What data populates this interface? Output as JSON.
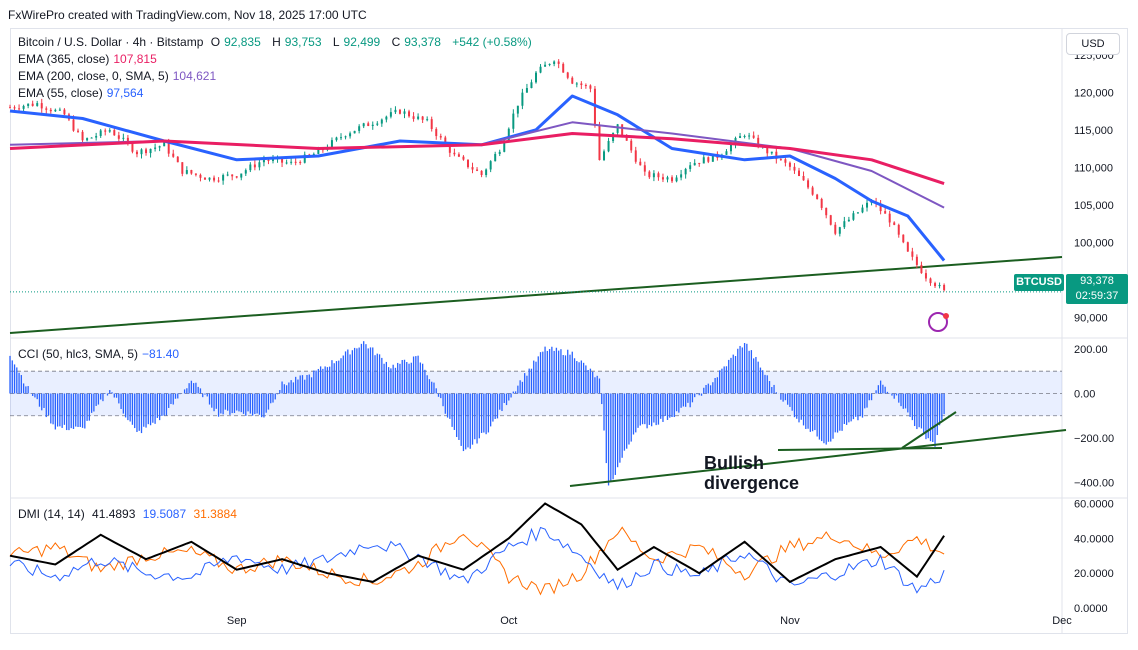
{
  "credit": "FxWirePro created with TradingView.com, Nov 18, 2025 17:00 UTC",
  "header": {
    "symbol": "Bitcoin / U.S. Dollar · 4h · Bitstamp",
    "o_label": "O",
    "o_value": "92,835",
    "h_label": "H",
    "h_value": "93,753",
    "l_label": "L",
    "l_value": "92,499",
    "c_label": "C",
    "c_value": "93,378",
    "change": "+542 (+0.58%)"
  },
  "indicators": [
    {
      "label": "EMA (365, close)",
      "value": "107,815",
      "color": "#e91e63"
    },
    {
      "label": "EMA (200, close, 0, SMA, 5)",
      "value": "104,621",
      "color": "#7e57c2"
    },
    {
      "label": "EMA (55, close)",
      "value": "97,564",
      "color": "#2962ff"
    }
  ],
  "cci_legend": {
    "label": "CCI (50, hlc3, SMA, 5)",
    "value": "−81.40"
  },
  "dmi_legend": {
    "label": "DMI (14, 14)",
    "adx": "41.4893",
    "plus_di": "19.5087",
    "minus_di": "31.3884"
  },
  "currency": "USD",
  "last_price": {
    "symbol": "BTCUSD",
    "price": "93,378",
    "countdown": "02:59:37"
  },
  "annotation": "Bullish divergence",
  "colors": {
    "up": "#089981",
    "down": "#f23645",
    "ema365": "#e91e63",
    "ema200": "#7e57c2",
    "ema55": "#2962ff",
    "cci": "#2962ff",
    "trend": "#1b5e20",
    "adx": "#000000",
    "plus_di": "#2962ff",
    "minus_di": "#ff6d00"
  },
  "chart_data": [
    {
      "type": "line",
      "name": "price",
      "yticks": [
        "90,000",
        "95,000",
        "100,000",
        "105,000",
        "110,000",
        "115,000",
        "120,000",
        "125,000"
      ],
      "ytick_values": [
        90000,
        95000,
        100000,
        105000,
        110000,
        115000,
        120000,
        125000
      ],
      "ylim": [
        87500,
        127500
      ],
      "xticks": [
        "Sep",
        "Oct",
        "Nov",
        "Dec"
      ],
      "xtick_dates": [
        "2025-09-01",
        "2025-10-01",
        "2025-11-01",
        "2025-12-01"
      ],
      "xlim": [
        "2025-08-07",
        "2025-12-01"
      ],
      "series": [
        {
          "key": "close",
          "x": [
            "2025-08-07",
            "2025-08-10",
            "2025-08-13",
            "2025-08-15",
            "2025-08-18",
            "2025-08-21",
            "2025-08-24",
            "2025-08-26",
            "2025-08-29",
            "2025-09-01",
            "2025-09-04",
            "2025-09-07",
            "2025-09-10",
            "2025-09-13",
            "2025-09-16",
            "2025-09-19",
            "2025-09-22",
            "2025-09-25",
            "2025-09-28",
            "2025-09-30",
            "2025-10-02",
            "2025-10-04",
            "2025-10-06",
            "2025-10-08",
            "2025-10-10",
            "2025-10-11",
            "2025-10-13",
            "2025-10-16",
            "2025-10-19",
            "2025-10-21",
            "2025-10-24",
            "2025-10-27",
            "2025-10-29",
            "2025-11-01",
            "2025-11-04",
            "2025-11-06",
            "2025-11-08",
            "2025-11-10",
            "2025-11-12",
            "2025-11-14",
            "2025-11-16",
            "2025-11-17",
            "2025-11-18"
          ],
          "y": [
            118000,
            118500,
            117000,
            113500,
            115000,
            112000,
            113000,
            109500,
            108500,
            109000,
            111000,
            110500,
            112000,
            114500,
            116000,
            117500,
            116000,
            111500,
            109000,
            112500,
            118500,
            122500,
            124500,
            121500,
            120500,
            111000,
            115500,
            109000,
            108500,
            110500,
            111500,
            114500,
            112500,
            110000,
            106000,
            101500,
            103500,
            105500,
            103000,
            98500,
            95500,
            94500,
            93378
          ]
        },
        {
          "key": "ema55",
          "x": [
            "2025-08-07",
            "2025-08-15",
            "2025-08-24",
            "2025-09-01",
            "2025-09-10",
            "2025-09-19",
            "2025-09-28",
            "2025-10-04",
            "2025-10-08",
            "2025-10-13",
            "2025-10-19",
            "2025-10-27",
            "2025-11-01",
            "2025-11-06",
            "2025-11-10",
            "2025-11-14",
            "2025-11-18"
          ],
          "y": [
            117500,
            116500,
            113500,
            111000,
            111500,
            113500,
            113000,
            115000,
            119500,
            117000,
            112500,
            111000,
            111500,
            108500,
            105500,
            103500,
            97564
          ]
        },
        {
          "key": "ema200",
          "x": [
            "2025-08-07",
            "2025-08-24",
            "2025-09-10",
            "2025-09-28",
            "2025-10-08",
            "2025-10-19",
            "2025-11-01",
            "2025-11-10",
            "2025-11-18"
          ],
          "y": [
            113000,
            113500,
            112500,
            113000,
            116000,
            114500,
            112500,
            109500,
            104621
          ]
        },
        {
          "key": "ema365",
          "x": [
            "2025-08-07",
            "2025-08-24",
            "2025-09-10",
            "2025-09-28",
            "2025-10-08",
            "2025-10-19",
            "2025-11-01",
            "2025-11-10",
            "2025-11-18"
          ],
          "y": [
            112500,
            113500,
            112500,
            113000,
            114500,
            113800,
            112500,
            111000,
            107815
          ]
        }
      ]
    },
    {
      "type": "area",
      "name": "CCI",
      "yticks": [
        "200.00",
        "0.00",
        "−200.00",
        "−400.00"
      ],
      "ytick_values": [
        200,
        0,
        -200,
        -400
      ],
      "band": [
        -100,
        100
      ],
      "ylim": [
        -460,
        240
      ],
      "series": [
        {
          "key": "cci",
          "x": [
            "2025-08-07",
            "2025-08-09",
            "2025-08-12",
            "2025-08-15",
            "2025-08-18",
            "2025-08-21",
            "2025-08-24",
            "2025-08-27",
            "2025-08-30",
            "2025-09-01",
            "2025-09-04",
            "2025-09-06",
            "2025-09-09",
            "2025-09-12",
            "2025-09-15",
            "2025-09-18",
            "2025-09-21",
            "2025-09-23",
            "2025-09-26",
            "2025-09-29",
            "2025-10-02",
            "2025-10-05",
            "2025-10-08",
            "2025-10-11",
            "2025-10-12",
            "2025-10-15",
            "2025-10-18",
            "2025-10-21",
            "2025-10-24",
            "2025-10-27",
            "2025-10-30",
            "2025-11-02",
            "2025-11-05",
            "2025-11-07",
            "2025-11-09",
            "2025-11-11",
            "2025-11-13",
            "2025-11-15",
            "2025-11-17",
            "2025-11-18"
          ],
          "y": [
            180,
            20,
            -150,
            -160,
            20,
            -180,
            -100,
            60,
            -90,
            -80,
            -100,
            40,
            80,
            150,
            230,
            120,
            160,
            20,
            -270,
            -150,
            40,
            200,
            180,
            60,
            -420,
            -160,
            -120,
            -50,
            80,
            230,
            40,
            -120,
            -220,
            -150,
            -100,
            50,
            -30,
            -150,
            -230,
            -81
          ]
        }
      ]
    },
    {
      "type": "line",
      "name": "DMI",
      "yticks": [
        "60.0000",
        "40.0000",
        "20.0000",
        "0.0000"
      ],
      "ytick_values": [
        60,
        40,
        20,
        0
      ],
      "ylim": [
        0,
        62
      ],
      "series": [
        {
          "key": "adx",
          "x": [
            "2025-08-07",
            "2025-08-12",
            "2025-08-17",
            "2025-08-22",
            "2025-08-27",
            "2025-09-01",
            "2025-09-06",
            "2025-09-11",
            "2025-09-16",
            "2025-09-21",
            "2025-09-26",
            "2025-10-01",
            "2025-10-05",
            "2025-10-09",
            "2025-10-13",
            "2025-10-17",
            "2025-10-22",
            "2025-10-27",
            "2025-11-01",
            "2025-11-06",
            "2025-11-11",
            "2025-11-15",
            "2025-11-18"
          ],
          "y": [
            30,
            25,
            42,
            28,
            38,
            22,
            28,
            20,
            15,
            30,
            22,
            40,
            60,
            48,
            22,
            35,
            20,
            38,
            15,
            28,
            35,
            18,
            41.5
          ]
        },
        {
          "key": "plus_di",
          "x": [
            "2025-08-07",
            "2025-08-12",
            "2025-08-17",
            "2025-08-22",
            "2025-08-27",
            "2025-09-01",
            "2025-09-06",
            "2025-09-11",
            "2025-09-16",
            "2025-09-21",
            "2025-09-26",
            "2025-10-01",
            "2025-10-05",
            "2025-10-09",
            "2025-10-13",
            "2025-10-17",
            "2025-10-22",
            "2025-10-27",
            "2025-11-01",
            "2025-11-06",
            "2025-11-11",
            "2025-11-15",
            "2025-11-18"
          ],
          "y": [
            25,
            18,
            28,
            20,
            18,
            30,
            22,
            28,
            38,
            30,
            15,
            35,
            45,
            30,
            12,
            25,
            18,
            32,
            12,
            20,
            28,
            10,
            19.5
          ]
        },
        {
          "key": "minus_di",
          "x": [
            "2025-08-07",
            "2025-08-12",
            "2025-08-17",
            "2025-08-22",
            "2025-08-27",
            "2025-09-01",
            "2025-09-06",
            "2025-09-11",
            "2025-09-16",
            "2025-09-21",
            "2025-09-26",
            "2025-10-01",
            "2025-10-05",
            "2025-10-09",
            "2025-10-13",
            "2025-10-17",
            "2025-10-22",
            "2025-10-27",
            "2025-11-01",
            "2025-11-06",
            "2025-11-11",
            "2025-11-15",
            "2025-11-18"
          ],
          "y": [
            30,
            35,
            22,
            30,
            32,
            22,
            28,
            20,
            15,
            25,
            45,
            18,
            10,
            20,
            45,
            28,
            35,
            20,
            35,
            42,
            30,
            40,
            31.4
          ]
        }
      ]
    }
  ]
}
